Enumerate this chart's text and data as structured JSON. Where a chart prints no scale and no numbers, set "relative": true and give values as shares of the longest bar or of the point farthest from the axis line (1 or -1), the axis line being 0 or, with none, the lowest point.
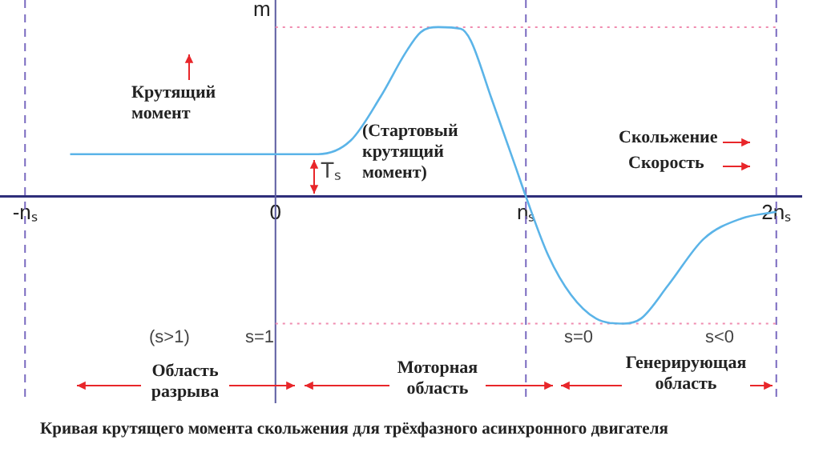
{
  "chart_data": {
    "type": "line",
    "title": "Кривая крутящего момента скольжения для трёхфазного асинхронного двигателя",
    "ylabel": "m",
    "relative": true,
    "marker": "none",
    "grid": false,
    "legend": false,
    "x": [
      -0.82,
      0,
      0.17,
      0.3,
      0.42,
      0.52,
      0.58,
      0.65,
      0.74,
      0.78,
      0.86,
      0.96,
      1.0,
      1.09,
      1.18,
      1.28,
      1.39,
      1.46,
      1.57,
      1.71,
      1.86,
      2.0
    ],
    "series": [
      {
        "color": "#5bb4e8",
        "values": [
          0.25,
          0.25,
          0.25,
          0.33,
          0.59,
          0.85,
          0.97,
          1.0,
          0.99,
          0.92,
          0.59,
          0.17,
          0,
          -0.35,
          -0.58,
          -0.72,
          -0.75,
          -0.72,
          -0.52,
          -0.25,
          -0.13,
          -0.09
        ]
      }
    ],
    "xlim": [
      -1.1,
      2.1
    ],
    "xticks": [
      {
        "value": -1,
        "label": "-nₛ"
      },
      0,
      {
        "value": 1,
        "label": "nₛ"
      },
      {
        "value": 2,
        "label": "2nₛ"
      }
    ],
    "ref_lines": [
      {
        "axis": "x",
        "value": 0,
        "color": "#5b5ba0",
        "line_style": "solid"
      },
      {
        "axis": "x",
        "value": -1,
        "color": "#7a6ac0",
        "line_style": "dashed"
      },
      {
        "axis": "x",
        "value": 1,
        "color": "#7a6ac0",
        "line_style": "dashed"
      },
      {
        "axis": "x",
        "value": 2,
        "color": "#7a6ac0",
        "line_style": "dashed"
      },
      {
        "axis": "y",
        "value": 1,
        "color": "#f08cb0",
        "line_style": "dotted"
      },
      {
        "axis": "y",
        "value": -0.75,
        "color": "#f08cb0",
        "line_style": "dotted"
      }
    ],
    "annotations": [
      "Крутящий момент",
      "(Стартовый крутящий момент)",
      "Tₛ",
      "Скольжение",
      "Скорость",
      "(s>1)",
      "s=1",
      "s=0",
      "s<0",
      "Область разрыва",
      "Моторная область",
      "Генерирующая область"
    ]
  }
}
